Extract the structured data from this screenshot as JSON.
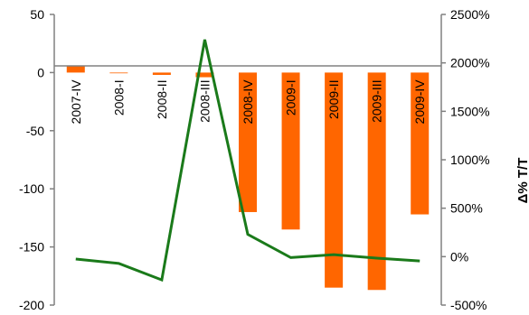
{
  "chart_data": {
    "type": "bar",
    "categories": [
      "2007-IV",
      "2008-I",
      "2008-II",
      "2008-III",
      "2008-IV",
      "2009-I",
      "2009-II",
      "2009-III",
      "2009-IV"
    ],
    "series": [
      {
        "type": "bar",
        "axis": "left",
        "color": "#FF6600",
        "values": [
          6,
          0,
          -2,
          -4,
          -120,
          -135,
          -185,
          -187,
          -122
        ]
      },
      {
        "type": "line",
        "axis": "right",
        "color": "#1A7A1A",
        "values": [
          -25,
          -70,
          -240,
          2240,
          230,
          -10,
          20,
          -15,
          -45
        ]
      }
    ],
    "y_left": {
      "range": [
        -200,
        50
      ],
      "ticks": [
        "50",
        "0",
        "-50",
        "-100",
        "-150",
        "-200"
      ]
    },
    "y_right": {
      "range": [
        -500,
        2500
      ],
      "ticks": [
        "2500%",
        "2000%",
        "1500%",
        "1000%",
        "500%",
        "0%",
        "-500%"
      ],
      "label": "Δ% T/T"
    },
    "grid": false
  }
}
